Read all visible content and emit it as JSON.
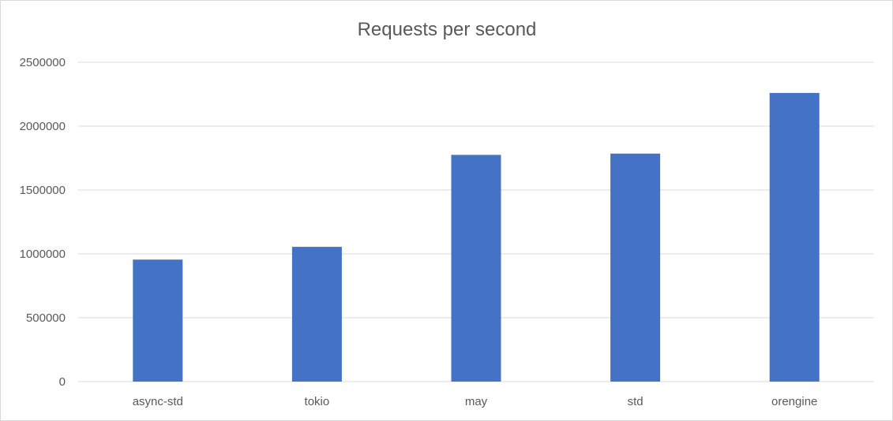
{
  "chart_data": {
    "type": "bar",
    "title": "Requests per second",
    "xlabel": "",
    "ylabel": "",
    "categories": [
      "async-std",
      "tokio",
      "may",
      "std",
      "orengine"
    ],
    "series": [
      {
        "values": [
          955000,
          1055000,
          1775000,
          1785000,
          2260000
        ]
      }
    ],
    "ylim": [
      0,
      2500000
    ],
    "yticks": [
      0,
      500000,
      1000000,
      1500000,
      2000000,
      2500000
    ],
    "ytick_labels": [
      "0",
      "500000",
      "1000000",
      "1500000",
      "2000000",
      "2500000"
    ],
    "grid": true,
    "legend": "none",
    "bar_color": "#4472c4",
    "grid_color": "#d9d9d9",
    "text_color": "#595959"
  }
}
